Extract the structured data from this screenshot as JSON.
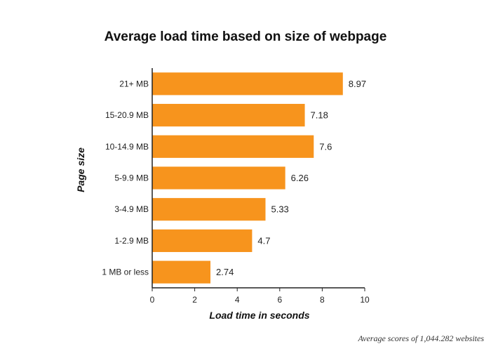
{
  "chart_data": {
    "type": "bar",
    "orientation": "horizontal",
    "title": "Average load time based on size of webpage",
    "xlabel": "Load time in seconds",
    "ylabel": "Page size",
    "categories": [
      "21+ MB",
      "15-20.9 MB",
      "10-14.9 MB",
      "5-9.9 MB",
      "3-4.9 MB",
      "1-2.9 MB",
      "1 MB or less"
    ],
    "values": [
      8.97,
      7.18,
      7.6,
      6.26,
      5.33,
      4.7,
      2.74
    ],
    "value_labels": [
      "8.97",
      "7.18",
      "7.6",
      "6.26",
      "5.33",
      "4.7",
      "2.74"
    ],
    "xlim": [
      0,
      10
    ],
    "xticks": [
      0,
      2,
      4,
      6,
      8,
      10
    ],
    "grid": false,
    "legend": "none",
    "bar_color": "#F7941D",
    "note": "Average scores of 1,044.282 websites"
  }
}
